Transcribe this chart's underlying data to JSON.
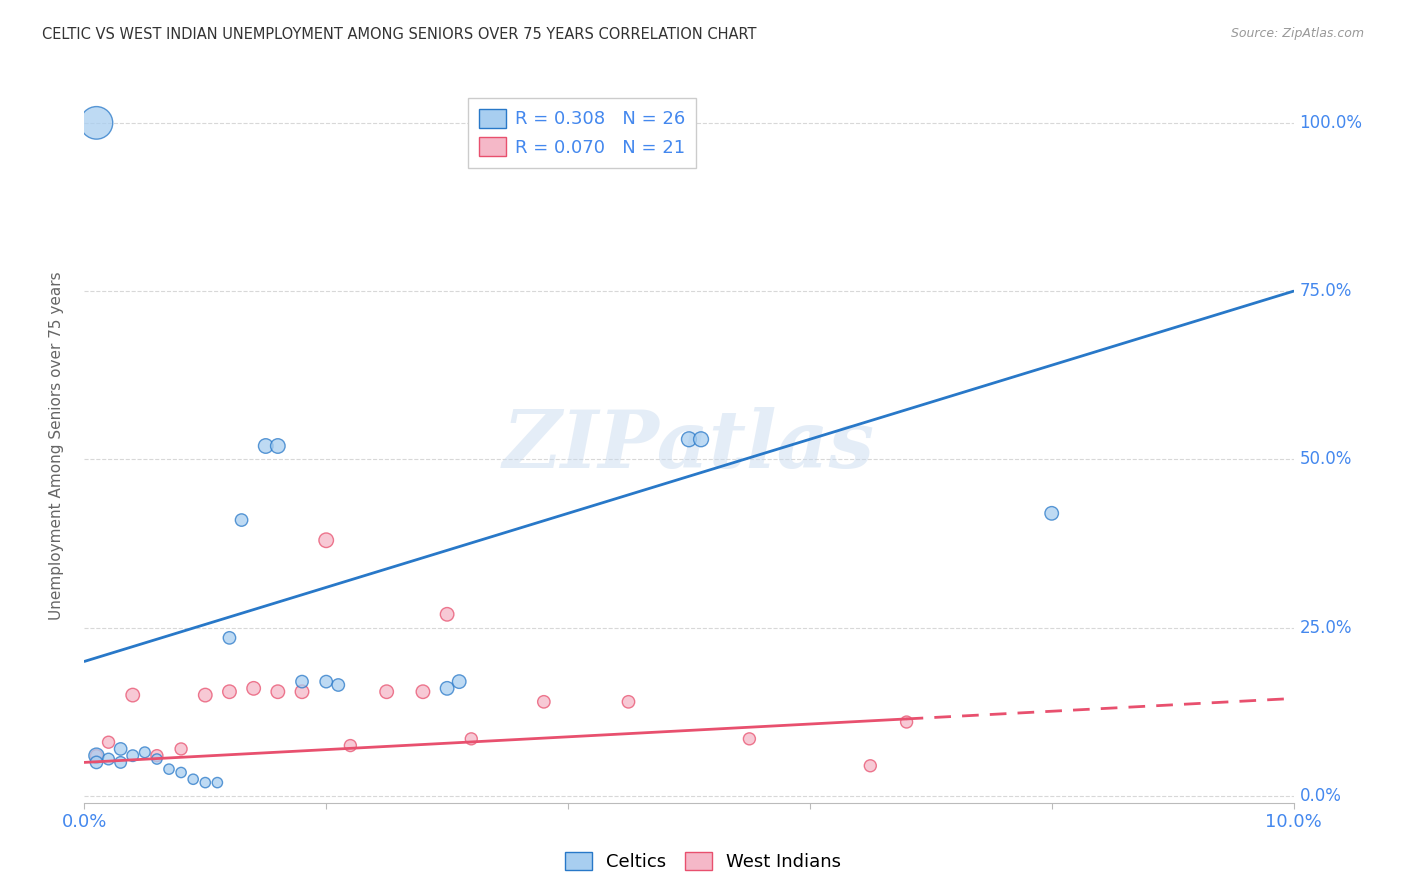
{
  "title": "CELTIC VS WEST INDIAN UNEMPLOYMENT AMONG SENIORS OVER 75 YEARS CORRELATION CHART",
  "source": "Source: ZipAtlas.com",
  "ylabel": "Unemployment Among Seniors over 75 years",
  "watermark": "ZIPatlas",
  "celtics_color": "#A8CEF0",
  "west_indians_color": "#F5B8C8",
  "trendline_celtics_color": "#2878C8",
  "trendline_west_indians_color": "#E8506E",
  "celtics_R": "0.308",
  "celtics_N": "26",
  "west_indians_R": "0.070",
  "west_indians_N": "21",
  "celtics_x": [
    0.001,
    0.001,
    0.002,
    0.003,
    0.003,
    0.004,
    0.005,
    0.006,
    0.007,
    0.008,
    0.009,
    0.01,
    0.011,
    0.012,
    0.013,
    0.015,
    0.016,
    0.018,
    0.02,
    0.021,
    0.03,
    0.031,
    0.05,
    0.051,
    0.08,
    0.001
  ],
  "celtics_y": [
    0.06,
    0.05,
    0.055,
    0.07,
    0.05,
    0.06,
    0.065,
    0.055,
    0.04,
    0.035,
    0.025,
    0.02,
    0.02,
    0.235,
    0.41,
    0.52,
    0.52,
    0.17,
    0.17,
    0.165,
    0.16,
    0.17,
    0.53,
    0.53,
    0.42,
    1.0
  ],
  "celtics_sizes": [
    120,
    80,
    70,
    80,
    70,
    70,
    60,
    55,
    55,
    55,
    55,
    55,
    55,
    80,
    80,
    110,
    110,
    80,
    80,
    80,
    95,
    95,
    115,
    115,
    95,
    550
  ],
  "west_indians_x": [
    0.001,
    0.002,
    0.004,
    0.006,
    0.008,
    0.01,
    0.012,
    0.014,
    0.016,
    0.018,
    0.02,
    0.022,
    0.025,
    0.028,
    0.03,
    0.032,
    0.038,
    0.045,
    0.055,
    0.065,
    0.068
  ],
  "west_indians_y": [
    0.06,
    0.08,
    0.15,
    0.06,
    0.07,
    0.15,
    0.155,
    0.16,
    0.155,
    0.155,
    0.38,
    0.075,
    0.155,
    0.155,
    0.27,
    0.085,
    0.14,
    0.14,
    0.085,
    0.045,
    0.11
  ],
  "west_indians_sizes": [
    75,
    75,
    95,
    75,
    75,
    95,
    95,
    95,
    95,
    95,
    110,
    75,
    95,
    95,
    95,
    75,
    80,
    80,
    75,
    75,
    75
  ],
  "trendline_celtics_x0": 0.0,
  "trendline_celtics_y0": 0.2,
  "trendline_celtics_x1": 0.1,
  "trendline_celtics_y1": 0.75,
  "trendline_wi_x0": 0.0,
  "trendline_wi_y0": 0.05,
  "trendline_wi_x1": 0.1,
  "trendline_wi_y1": 0.145,
  "xlim": [
    0.0,
    0.1
  ],
  "ylim": [
    -0.01,
    1.05
  ],
  "y_ticks": [
    0.0,
    0.25,
    0.5,
    0.75,
    1.0
  ],
  "y_tick_labels": [
    "0.0%",
    "25.0%",
    "50.0%",
    "75.0%",
    "100.0%"
  ],
  "background_color": "#ffffff",
  "grid_color": "#D8D8D8",
  "axis_color": "#BBBBBB",
  "label_color": "#4488EE",
  "title_color": "#333333",
  "ylabel_color": "#666666"
}
